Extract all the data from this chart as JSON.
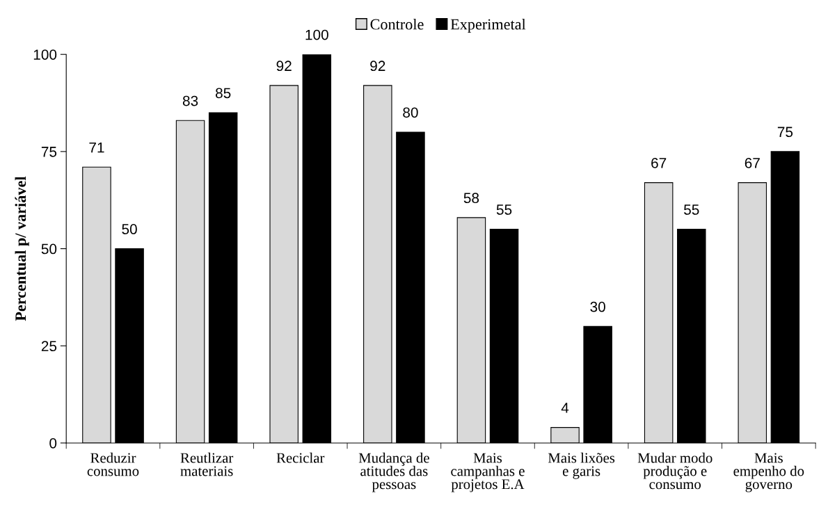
{
  "chart_data": {
    "type": "bar",
    "ylabel": "Percentual p/ variável",
    "categories": [
      "Reduzir\nconsumo",
      "Reutlizar\nmateriais",
      "Reciclar",
      "Mudança de\natitudes das\npessoas",
      "Mais\ncampanhas e\nprojetos E.A",
      "Mais lixões\ne garis",
      "Mudar modo\nprodução e\nconsumo",
      "Mais\nempenho do\ngoverno"
    ],
    "series": [
      {
        "name": "Controle",
        "color": "#d9d9d9",
        "values": [
          71,
          83,
          92,
          92,
          58,
          4,
          67,
          67
        ]
      },
      {
        "name": "Experimetal",
        "color": "#000000",
        "values": [
          50,
          85,
          100,
          80,
          55,
          30,
          55,
          75
        ]
      }
    ],
    "ylim": [
      0,
      100
    ],
    "yticks": [
      0,
      25,
      50,
      75,
      100
    ],
    "grid": false,
    "legend": "top",
    "data_labels": true
  }
}
